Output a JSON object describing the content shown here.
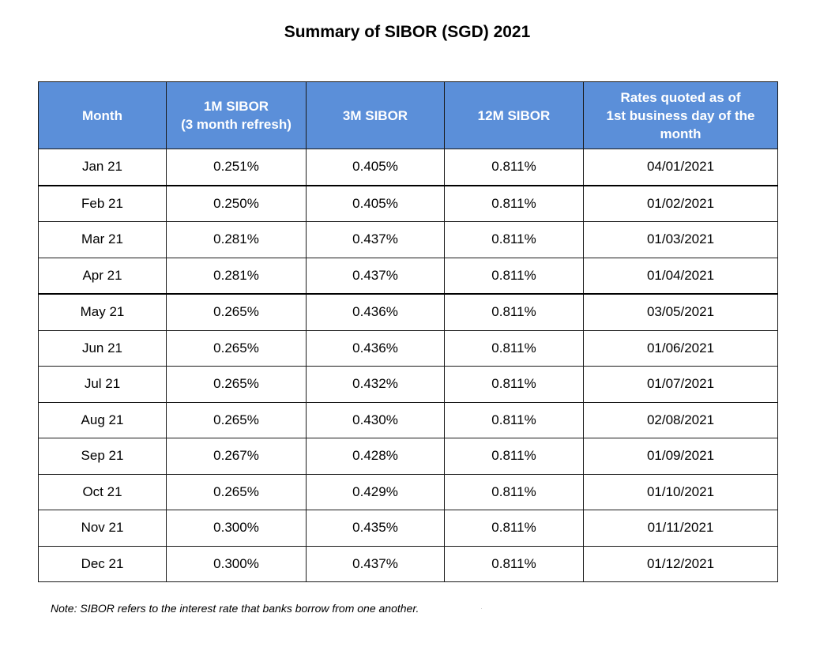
{
  "title": "Summary of SIBOR (SGD) 2021",
  "headers": {
    "month": "Month",
    "m1_line1": "1M SIBOR",
    "m1_line2": "(3 month refresh)",
    "m3": "3M SIBOR",
    "m12": "12M SIBOR",
    "rates_line1": "Rates quoted as of",
    "rates_line2": "1st business day of the",
    "rates_line3": "month"
  },
  "rows": [
    {
      "month": "Jan 21",
      "m1": "0.251%",
      "m3": "0.405%",
      "m12": "0.811%",
      "quoted": "04/01/2021"
    },
    {
      "month": "Feb 21",
      "m1": "0.250%",
      "m3": "0.405%",
      "m12": "0.811%",
      "quoted": "01/02/2021"
    },
    {
      "month": "Mar 21",
      "m1": "0.281%",
      "m3": "0.437%",
      "m12": "0.811%",
      "quoted": "01/03/2021"
    },
    {
      "month": "Apr 21",
      "m1": "0.281%",
      "m3": "0.437%",
      "m12": "0.811%",
      "quoted": "01/04/2021"
    },
    {
      "month": "May 21",
      "m1": "0.265%",
      "m3": "0.436%",
      "m12": "0.811%",
      "quoted": "03/05/2021"
    },
    {
      "month": "Jun 21",
      "m1": "0.265%",
      "m3": "0.436%",
      "m12": "0.811%",
      "quoted": "01/06/2021"
    },
    {
      "month": "Jul 21",
      "m1": "0.265%",
      "m3": "0.432%",
      "m12": "0.811%",
      "quoted": "01/07/2021"
    },
    {
      "month": "Aug 21",
      "m1": "0.265%",
      "m3": "0.430%",
      "m12": "0.811%",
      "quoted": "02/08/2021"
    },
    {
      "month": "Sep 21",
      "m1": "0.267%",
      "m3": "0.428%",
      "m12": "0.811%",
      "quoted": "01/09/2021"
    },
    {
      "month": "Oct 21",
      "m1": "0.265%",
      "m3": "0.429%",
      "m12": "0.811%",
      "quoted": "01/10/2021"
    },
    {
      "month": "Nov 21",
      "m1": "0.300%",
      "m3": "0.435%",
      "m12": "0.811%",
      "quoted": "01/11/2021"
    },
    {
      "month": "Dec 21",
      "m1": "0.300%",
      "m3": "0.437%",
      "m12": "0.811%",
      "quoted": "01/12/2021"
    }
  ],
  "note": "Note: SIBOR refers to the interest rate that banks borrow from one another.",
  "colors": {
    "header_fill": "#5b8fd9",
    "header_text": "#ffffff",
    "border": "#1a1a1a"
  }
}
